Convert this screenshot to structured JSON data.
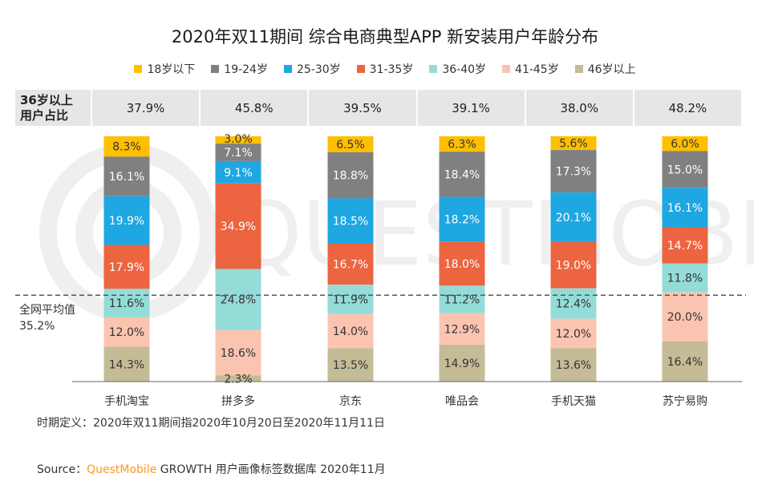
{
  "title": "2020年双11期间 综合电商典型APP 新安装用户年龄分布",
  "legend": [
    {
      "label": "18岁以下",
      "color": "#ffbf00"
    },
    {
      "label": "19-24岁",
      "color": "#808080"
    },
    {
      "label": "25-30岁",
      "color": "#1ea7e1"
    },
    {
      "label": "31-35岁",
      "color": "#ec6440"
    },
    {
      "label": "36-40岁",
      "color": "#94dcd8"
    },
    {
      "label": "41-45岁",
      "color": "#fbc4b1"
    },
    {
      "label": "46岁以上",
      "color": "#c4bc96"
    }
  ],
  "ratio_row": {
    "label_line1": "36岁以上",
    "label_line2": "用户占比",
    "values": [
      "37.9%",
      "45.8%",
      "39.5%",
      "39.1%",
      "38.0%",
      "48.2%"
    ]
  },
  "average": {
    "label_line1": "全网平均值",
    "label_line2": "35.2%",
    "value": 35.2
  },
  "chart_data": {
    "type": "bar",
    "stacked": true,
    "unit": "%",
    "categories": [
      "手机淘宝",
      "拼多多",
      "京东",
      "唯品会",
      "手机天猫",
      "苏宁易购"
    ],
    "series": [
      {
        "name": "18岁以下",
        "values": [
          8.3,
          3.0,
          6.5,
          6.3,
          5.6,
          6.0
        ]
      },
      {
        "name": "19-24岁",
        "values": [
          16.1,
          7.1,
          18.8,
          18.4,
          17.3,
          15.0
        ]
      },
      {
        "name": "25-30岁",
        "values": [
          19.9,
          9.1,
          18.5,
          18.2,
          20.1,
          16.1
        ]
      },
      {
        "name": "31-35岁",
        "values": [
          17.9,
          34.9,
          16.7,
          18.0,
          19.0,
          14.7
        ]
      },
      {
        "name": "36-40岁",
        "values": [
          11.6,
          24.8,
          11.9,
          11.2,
          12.4,
          11.8
        ]
      },
      {
        "name": "41-45岁",
        "values": [
          12.0,
          18.6,
          14.0,
          12.9,
          12.0,
          20.0
        ]
      },
      {
        "name": "46岁以上",
        "values": [
          14.3,
          2.3,
          13.5,
          14.9,
          13.6,
          16.4
        ]
      }
    ],
    "ylim": [
      0,
      100
    ],
    "grid": false,
    "legend_position": "top"
  },
  "footnote": "时期定义：2020年双11期间指2020年10月20日至2020年11月11日",
  "source": {
    "prefix": "Source：",
    "brand": "QuestMobile",
    "text": " GROWTH 用户画像标签数据库 2020年11月"
  },
  "watermark": "QUESTMOBILE"
}
